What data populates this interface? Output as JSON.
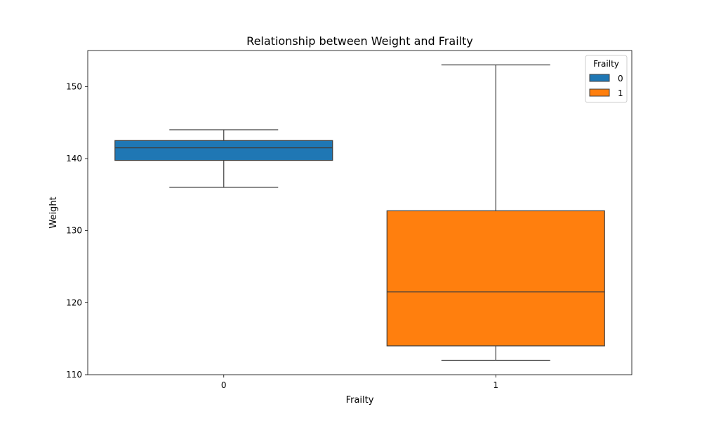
{
  "chart_data": {
    "type": "box",
    "title": "Relationship between Weight and Frailty",
    "xlabel": "Frailty",
    "ylabel": "Weight",
    "ylim": [
      110,
      155
    ],
    "yticks": [
      110,
      120,
      130,
      140,
      150
    ],
    "categories": [
      "0",
      "1"
    ],
    "grid": false,
    "legend": {
      "title": "Frailty",
      "position": "top-right",
      "entries": [
        {
          "label": "0",
          "color": "#1f77b4"
        },
        {
          "label": "1",
          "color": "#ff7f0e"
        }
      ]
    },
    "series": [
      {
        "category": "0",
        "color": "#1f77b4",
        "whisker_low": 136,
        "q1": 139.75,
        "median": 141.5,
        "q3": 142.5,
        "whisker_high": 144
      },
      {
        "category": "1",
        "color": "#ff7f0e",
        "whisker_low": 112,
        "q1": 114,
        "median": 121.5,
        "q3": 132.75,
        "whisker_high": 153
      }
    ]
  }
}
